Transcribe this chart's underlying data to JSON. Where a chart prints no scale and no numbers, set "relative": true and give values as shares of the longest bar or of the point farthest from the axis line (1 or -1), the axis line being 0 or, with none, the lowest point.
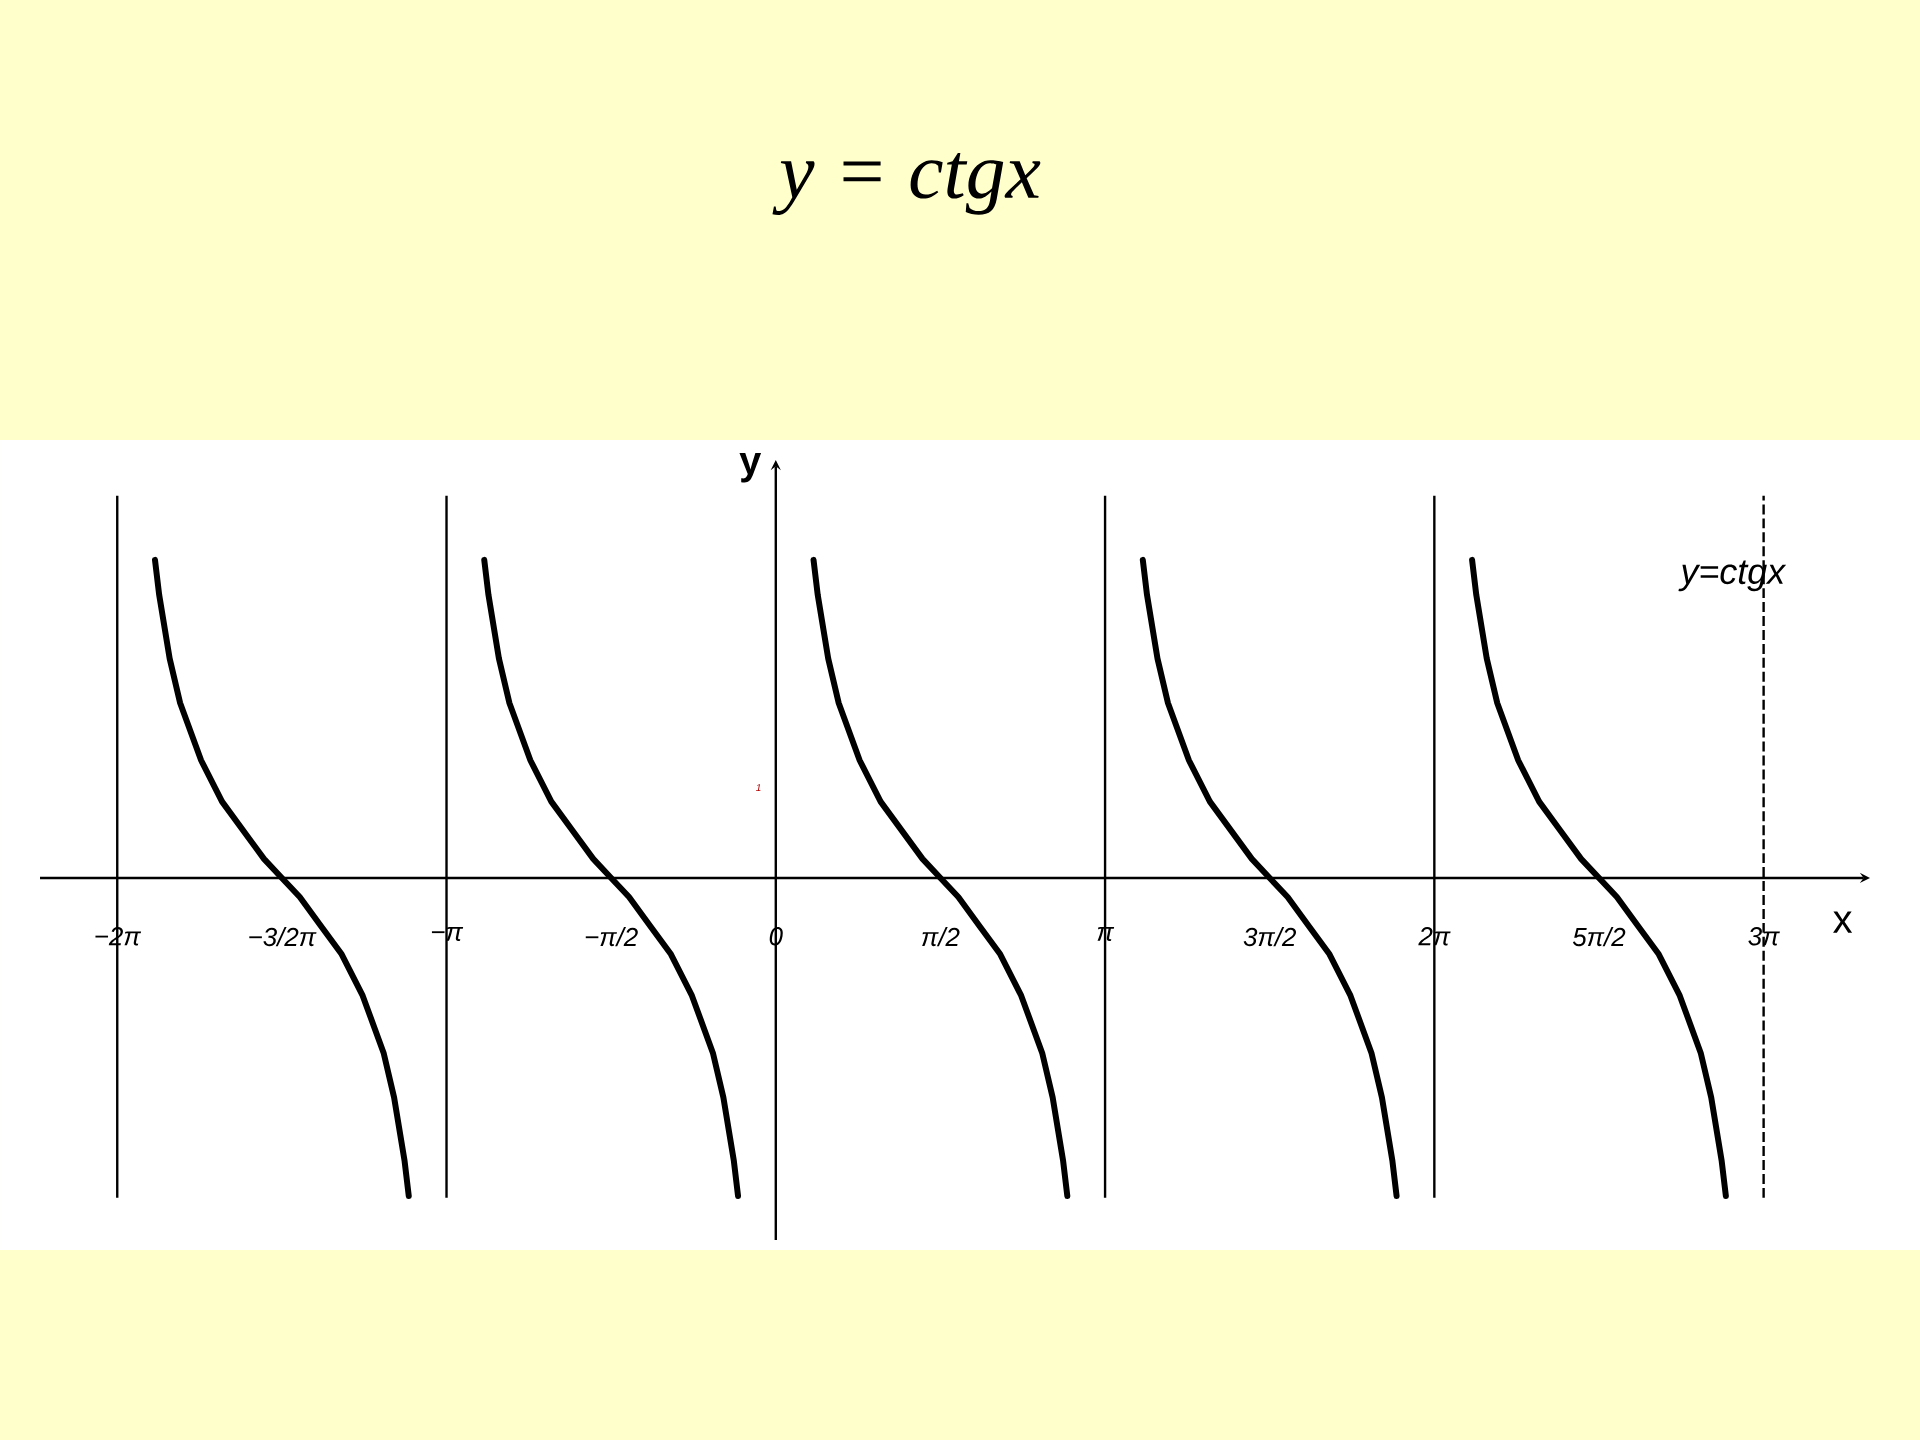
{
  "chart_data": {
    "type": "line",
    "title": "y = ctgx",
    "xlabel": "x",
    "ylabel": "y",
    "annotations": [
      "y=ctgx",
      "1"
    ],
    "relative": true,
    "xlim": [
      -7.02,
      10.44
    ],
    "xticks": [
      {
        "value": -6.2832,
        "label": "−2π"
      },
      {
        "value": -4.7124,
        "label": "−3/2π"
      },
      {
        "value": -3.1416,
        "label": "−π"
      },
      {
        "value": -1.5708,
        "label": "−π/2"
      },
      {
        "value": 0,
        "label": "0"
      },
      {
        "value": 1.5708,
        "label": "π/2"
      },
      {
        "value": 3.1416,
        "label": "π"
      },
      {
        "value": 4.7124,
        "label": "3π/2"
      },
      {
        "value": 6.2832,
        "label": "2π"
      },
      {
        "value": 7.854,
        "label": "5π/2"
      },
      {
        "value": 9.4248,
        "label": "3π"
      }
    ],
    "marker": "none",
    "line_style": "solid",
    "series": [
      {
        "color": "#000000",
        "x": [
          -5.9232,
          -5.8832,
          -5.7832,
          -5.6832,
          -5.4832,
          -5.2832,
          -5.0832,
          -4.8832,
          -4.7124,
          -4.5416,
          -4.3416,
          -4.1416,
          -3.9416,
          -3.7416,
          -3.6416,
          -3.5416,
          -3.5016
        ],
        "values": [
          1,
          0.89,
          0.69,
          0.55,
          0.37,
          0.24,
          0.15,
          0.06,
          0,
          -0.06,
          -0.15,
          -0.24,
          -0.37,
          -0.55,
          -0.69,
          -0.89,
          -1
        ]
      },
      {
        "color": "#000000",
        "x": [
          -2.7816,
          -2.7416,
          -2.6416,
          -2.5416,
          -2.3416,
          -2.1416,
          -1.9416,
          -1.7416,
          -1.5708,
          -1.4,
          -1.2,
          -1.0,
          -0.8,
          -0.6,
          -0.5,
          -0.4,
          -0.36
        ],
        "values": [
          1,
          0.89,
          0.69,
          0.55,
          0.37,
          0.24,
          0.15,
          0.06,
          0,
          -0.06,
          -0.15,
          -0.24,
          -0.37,
          -0.55,
          -0.69,
          -0.89,
          -1
        ]
      },
      {
        "color": "#000000",
        "x": [
          0.36,
          0.4,
          0.5,
          0.6,
          0.8,
          1.0,
          1.2,
          1.4,
          1.5708,
          1.7416,
          1.9416,
          2.1416,
          2.3416,
          2.5416,
          2.6416,
          2.7416,
          2.7816
        ],
        "values": [
          1,
          0.89,
          0.69,
          0.55,
          0.37,
          0.24,
          0.15,
          0.06,
          0,
          -0.06,
          -0.15,
          -0.24,
          -0.37,
          -0.55,
          -0.69,
          -0.89,
          -1
        ]
      },
      {
        "color": "#000000",
        "x": [
          3.5016,
          3.5416,
          3.6416,
          3.7416,
          3.9416,
          4.1416,
          4.3416,
          4.5416,
          4.7124,
          4.8832,
          5.0832,
          5.2832,
          5.4832,
          5.6832,
          5.7832,
          5.8832,
          5.9232
        ],
        "values": [
          1,
          0.89,
          0.69,
          0.55,
          0.37,
          0.24,
          0.15,
          0.06,
          0,
          -0.06,
          -0.15,
          -0.24,
          -0.37,
          -0.55,
          -0.69,
          -0.89,
          -1
        ]
      },
      {
        "color": "#000000",
        "x": [
          6.6432,
          6.6832,
          6.7832,
          6.8832,
          7.0832,
          7.2832,
          7.4832,
          7.6832,
          7.854,
          8.0248,
          8.2248,
          8.4248,
          8.6248,
          8.8248,
          8.9248,
          9.0248,
          9.0648
        ],
        "values": [
          1,
          0.89,
          0.69,
          0.55,
          0.37,
          0.24,
          0.15,
          0.06,
          0,
          -0.06,
          -0.15,
          -0.24,
          -0.37,
          -0.55,
          -0.69,
          -0.89,
          -1
        ]
      }
    ],
    "ref_lines": [
      {
        "axis": "x",
        "value": -6.2832
      },
      {
        "axis": "x",
        "value": -3.1416
      },
      {
        "axis": "x",
        "value": 3.1416
      },
      {
        "axis": "x",
        "value": 6.2832
      },
      {
        "axis": "x",
        "value": 9.4248,
        "line_style": "dashed"
      }
    ]
  }
}
